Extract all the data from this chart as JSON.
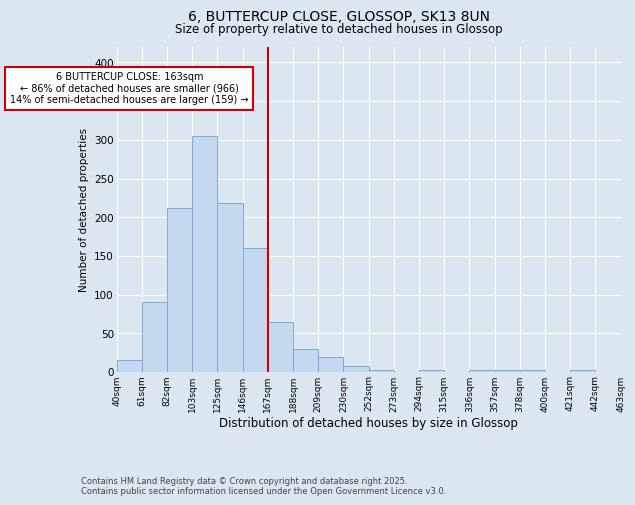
{
  "title_line1": "6, BUTTERCUP CLOSE, GLOSSOP, SK13 8UN",
  "title_line2": "Size of property relative to detached houses in Glossop",
  "xlabel": "Distribution of detached houses by size in Glossop",
  "ylabel": "Number of detached properties",
  "bar_color": "#c5d8f0",
  "bar_edge_color": "#7bacd4",
  "background_color": "#dce6f0",
  "grid_color": "#ffffff",
  "vline_color": "#cc0000",
  "vline_x_bin": 6,
  "annotation_text": "6 BUTTERCUP CLOSE: 163sqm\n← 86% of detached houses are smaller (966)\n14% of semi-detached houses are larger (159) →",
  "annotation_box_color": "#ffffff",
  "annotation_box_edge": "#cc0000",
  "bin_labels": [
    "40sqm",
    "61sqm",
    "82sqm",
    "103sqm",
    "125sqm",
    "146sqm",
    "167sqm",
    "188sqm",
    "209sqm",
    "230sqm",
    "252sqm",
    "273sqm",
    "294sqm",
    "315sqm",
    "336sqm",
    "357sqm",
    "378sqm",
    "400sqm",
    "421sqm",
    "442sqm",
    "463sqm"
  ],
  "bar_heights": [
    15,
    90,
    212,
    305,
    218,
    160,
    64,
    30,
    19,
    8,
    2,
    0,
    3,
    0,
    2,
    2,
    2,
    0,
    2,
    0
  ],
  "ylim": [
    0,
    420
  ],
  "yticks": [
    0,
    50,
    100,
    150,
    200,
    250,
    300,
    350,
    400
  ],
  "footer_line1": "Contains HM Land Registry data © Crown copyright and database right 2025.",
  "footer_line2": "Contains public sector information licensed under the Open Government Licence v3.0."
}
